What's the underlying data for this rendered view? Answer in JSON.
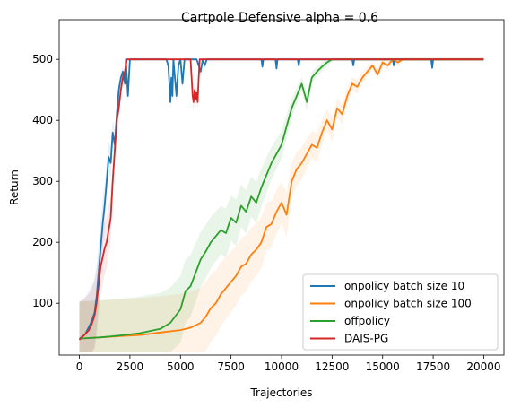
{
  "chart_data": {
    "type": "line",
    "title": "Cartpole Defensive alpha = 0.6",
    "xlabel": "Trajectories",
    "ylabel": "Return",
    "xlim": [
      -1000,
      21000
    ],
    "ylim": [
      15,
      565
    ],
    "x_ticks": [
      0,
      2500,
      5000,
      7500,
      10000,
      12500,
      15000,
      17500,
      20000
    ],
    "y_ticks": [
      100,
      200,
      300,
      400,
      500
    ],
    "grid": false,
    "legend_position": "lower-right",
    "series": [
      {
        "name": "onpolicy batch size 10",
        "color": "#1f77b4",
        "x": [
          0,
          150,
          300,
          450,
          600,
          750,
          850,
          950,
          1050,
          1150,
          1250,
          1350,
          1450,
          1550,
          1650,
          1750,
          1850,
          1950,
          2050,
          2150,
          2250,
          2300,
          2400,
          2500,
          2700,
          3500,
          4300,
          4400,
          4450,
          4500,
          4550,
          4600,
          4650,
          4700,
          4800,
          4900,
          5000,
          5100,
          5200,
          5400,
          5600,
          5800,
          6000,
          6100,
          6200,
          6300,
          6400,
          7000,
          9000,
          9050,
          9100,
          9500,
          9700,
          9750,
          9800,
          10500,
          10800,
          10850,
          10900,
          11500,
          13500,
          13550,
          13600,
          14500,
          15500,
          15550,
          15600,
          17400,
          17450,
          17500,
          17600,
          20000
        ],
        "y": [
          42,
          45,
          50,
          60,
          70,
          85,
          110,
          150,
          190,
          230,
          260,
          300,
          340,
          330,
          380,
          360,
          410,
          450,
          470,
          480,
          460,
          500,
          440,
          500,
          500,
          500,
          500,
          490,
          460,
          430,
          470,
          440,
          500,
          480,
          440,
          490,
          500,
          460,
          500,
          500,
          500,
          500,
          480,
          500,
          490,
          500,
          500,
          500,
          500,
          488,
          500,
          500,
          500,
          485,
          500,
          500,
          500,
          490,
          500,
          500,
          500,
          490,
          500,
          500,
          500,
          490,
          500,
          500,
          486,
          500,
          500,
          500
        ]
      },
      {
        "name": "onpolicy batch size 100",
        "color": "#ff7f0e",
        "x": [
          0,
          1000,
          2000,
          3000,
          4000,
          5000,
          5500,
          6000,
          6250,
          6500,
          6750,
          7000,
          7250,
          7500,
          7750,
          8000,
          8250,
          8500,
          8750,
          9000,
          9250,
          9500,
          9750,
          10000,
          10250,
          10500,
          10750,
          11000,
          11250,
          11500,
          11750,
          12000,
          12250,
          12500,
          12750,
          13000,
          13250,
          13500,
          13750,
          14000,
          14250,
          14500,
          14750,
          15000,
          15250,
          15500,
          15750,
          16000,
          20000
        ],
        "y": [
          42,
          44,
          46,
          48,
          52,
          56,
          60,
          68,
          78,
          92,
          100,
          115,
          125,
          135,
          145,
          160,
          165,
          180,
          188,
          200,
          225,
          230,
          250,
          265,
          245,
          300,
          320,
          330,
          345,
          360,
          355,
          380,
          400,
          385,
          420,
          410,
          440,
          460,
          455,
          470,
          480,
          490,
          475,
          495,
          490,
          500,
          495,
          500,
          500
        ]
      },
      {
        "name": "offpolicy",
        "color": "#2ca02c",
        "x": [
          0,
          1000,
          2000,
          3000,
          4000,
          4500,
          5000,
          5250,
          5500,
          5750,
          6000,
          6250,
          6500,
          6750,
          7000,
          7250,
          7500,
          7750,
          8000,
          8250,
          8500,
          8750,
          9000,
          9250,
          9500,
          9750,
          10000,
          10250,
          10500,
          10750,
          11000,
          11250,
          11500,
          11750,
          12000,
          12250,
          12500,
          13000,
          13500,
          14000,
          20000
        ],
        "y": [
          42,
          44,
          47,
          51,
          58,
          68,
          90,
          120,
          128,
          150,
          172,
          185,
          200,
          210,
          220,
          215,
          240,
          232,
          260,
          250,
          275,
          265,
          290,
          310,
          330,
          345,
          360,
          390,
          420,
          440,
          460,
          430,
          470,
          480,
          488,
          495,
          500,
          500,
          500,
          500,
          500
        ]
      },
      {
        "name": "DAIS-PG",
        "color": "#d62728",
        "x": [
          0,
          150,
          300,
          450,
          600,
          750,
          850,
          950,
          1050,
          1150,
          1250,
          1350,
          1450,
          1550,
          1650,
          1750,
          1850,
          1950,
          2050,
          2150,
          2250,
          2350,
          2450,
          2600,
          5500,
          5550,
          5600,
          5650,
          5700,
          5750,
          5800,
          5850,
          5900,
          5950,
          6000,
          20000
        ],
        "y": [
          40,
          45,
          50,
          55,
          65,
          80,
          100,
          130,
          160,
          175,
          190,
          200,
          220,
          240,
          300,
          350,
          400,
          420,
          450,
          470,
          480,
          500,
          500,
          500,
          500,
          470,
          440,
          430,
          450,
          435,
          445,
          430,
          470,
          500,
          500,
          500
        ]
      }
    ]
  }
}
